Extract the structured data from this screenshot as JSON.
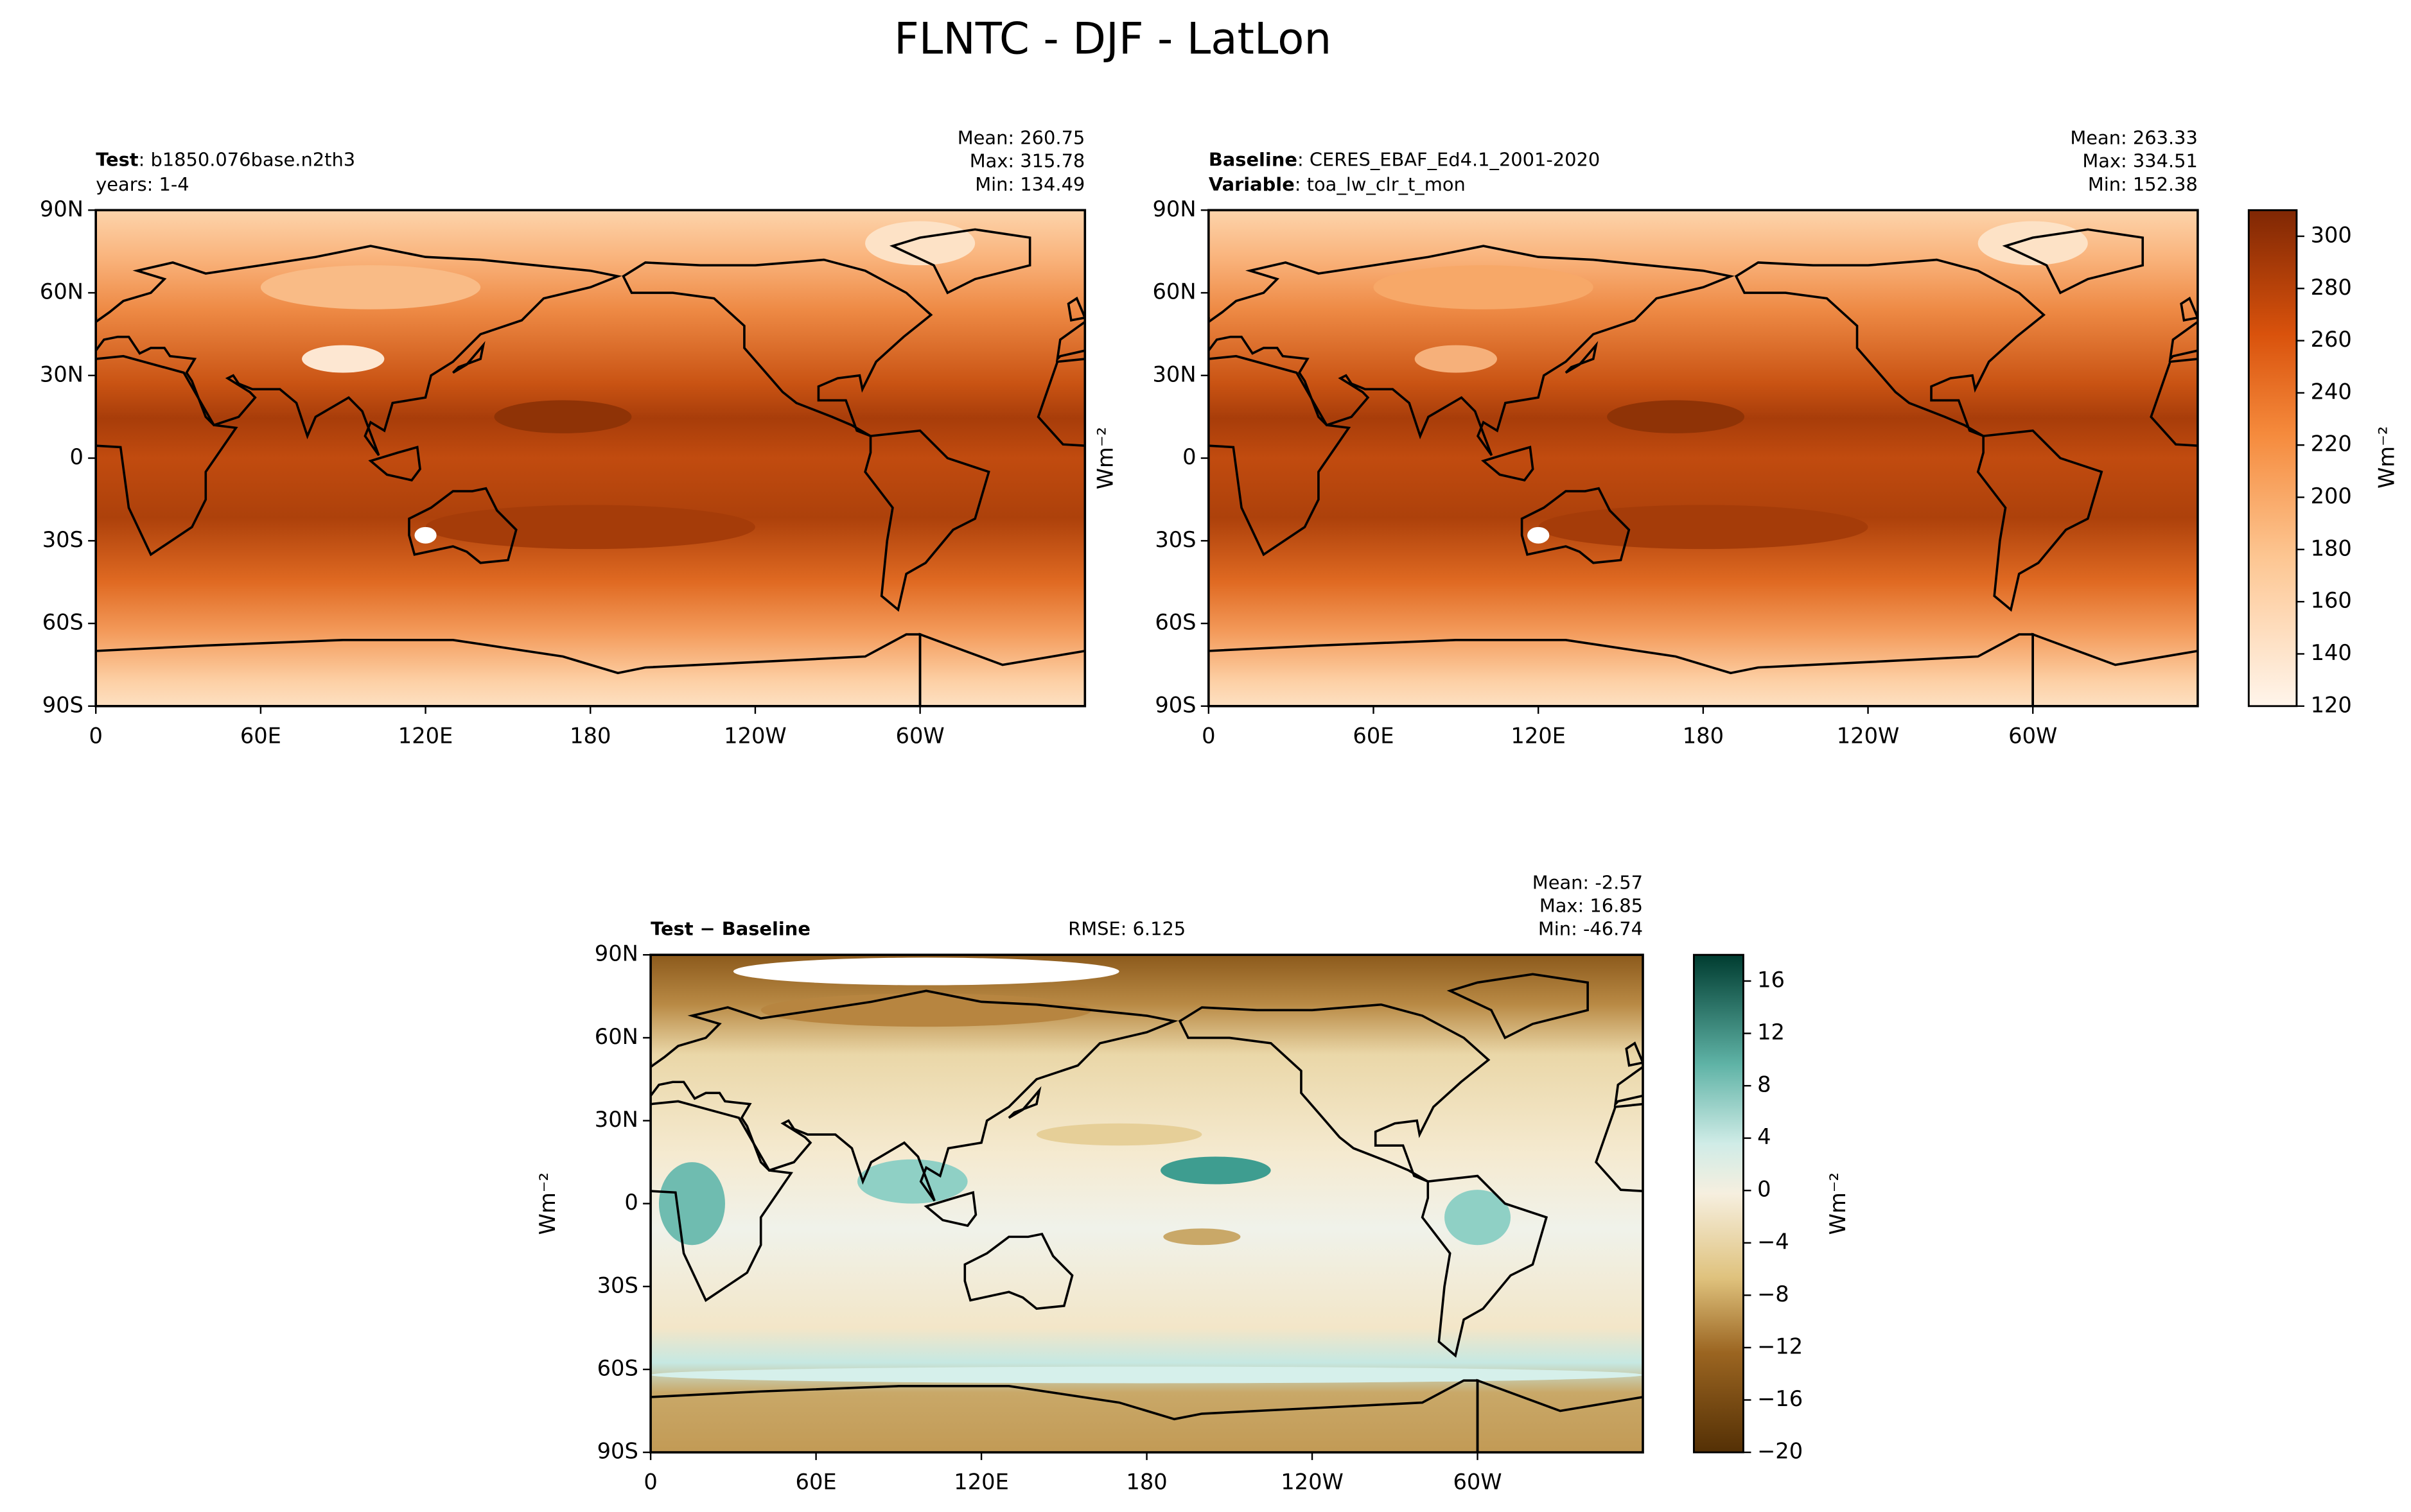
{
  "title": "FLNTC - DJF - LatLon",
  "lat_ticks": [
    "90N",
    "60N",
    "30N",
    "0",
    "30S",
    "60S",
    "90S"
  ],
  "lon_ticks": [
    "0",
    "60E",
    "120E",
    "180",
    "120W",
    "60W"
  ],
  "panels": [
    {
      "lines": [
        {
          "key": "Test",
          "text": ": b1850.076base.n2th3"
        },
        {
          "text": "years: 1-4"
        }
      ],
      "stats": [
        "Mean: 260.75",
        "Max: 315.78",
        "Min: 134.49"
      ]
    },
    {
      "lines": [
        {
          "key": "Baseline",
          "text": ": CERES_EBAF_Ed4.1_2001-2020"
        },
        {
          "key": "Variable",
          "text": ": toa_lw_clr_t_mon"
        }
      ],
      "stats": [
        "Mean: 263.33",
        "Max: 334.51",
        "Min: 152.38"
      ],
      "ylabel": "Wm⁻²"
    },
    {
      "lines": [
        {
          "key": "Test − Baseline"
        }
      ],
      "center": "RMSE: 6.125",
      "stats": [
        "Mean: -2.57",
        "Max: 16.85",
        "Min: -46.74"
      ],
      "ylabel": "Wm⁻²"
    }
  ],
  "colorbars": [
    {
      "label": "Wm⁻²",
      "lim": [
        120,
        310
      ],
      "ticks": [
        120,
        140,
        160,
        180,
        200,
        220,
        240,
        260,
        280,
        300
      ]
    },
    {
      "label": "Wm⁻²",
      "lim": [
        -20,
        18
      ],
      "ticks": [
        {
          "value": -20,
          "label": "−20"
        },
        {
          "value": -16,
          "label": "−16"
        },
        {
          "value": -12,
          "label": "−12"
        },
        {
          "value": -8,
          "label": "−8"
        },
        {
          "value": -4,
          "label": "−4"
        },
        0,
        4,
        8,
        12,
        16
      ]
    }
  ]
}
